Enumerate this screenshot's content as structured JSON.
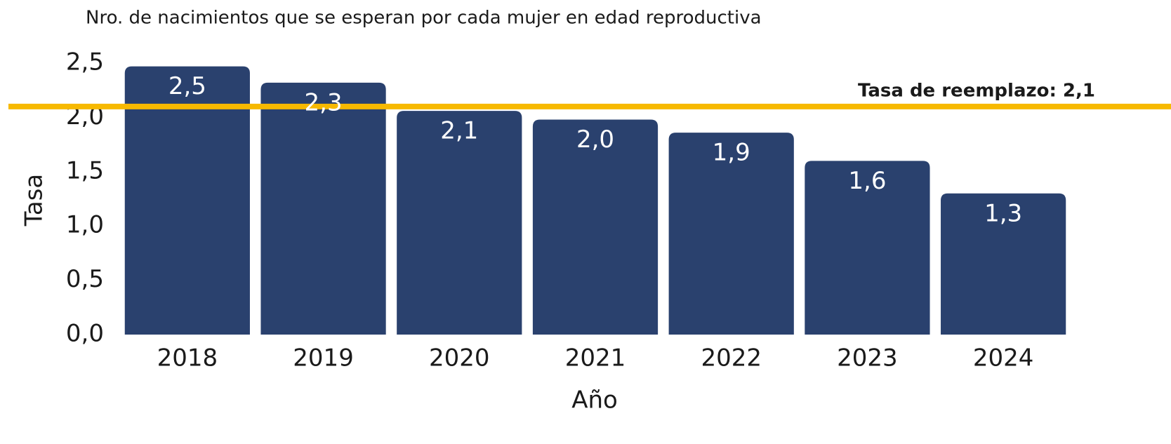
{
  "chart_data": {
    "type": "bar",
    "title": "Nro. de nacimientos que se esperan por cada mujer en edad reproductiva",
    "xlabel": "Año",
    "ylabel": "Tasa",
    "categories": [
      "2018",
      "2019",
      "2020",
      "2021",
      "2022",
      "2023",
      "2024"
    ],
    "values": [
      2.47,
      2.32,
      2.06,
      1.98,
      1.86,
      1.6,
      1.3
    ],
    "value_labels": [
      "2,5",
      "2,3",
      "2,1",
      "2,0",
      "1,9",
      "1,6",
      "1,3"
    ],
    "color": "#2a416e",
    "ylim": [
      0,
      2.5
    ],
    "yticks": [
      {
        "value": 0,
        "label": "0,0"
      },
      {
        "value": 0.5,
        "label": "0,5"
      },
      {
        "value": 1,
        "label": "1,0"
      },
      {
        "value": 1.5,
        "label": "1,5"
      },
      {
        "value": 2,
        "label": "2,0"
      },
      {
        "value": 2.5,
        "label": "2,5"
      }
    ],
    "grid": false,
    "reference_line": {
      "value": 2.1,
      "label": "Tasa de reemplazo: 2,1",
      "color": "#f7b900"
    }
  }
}
